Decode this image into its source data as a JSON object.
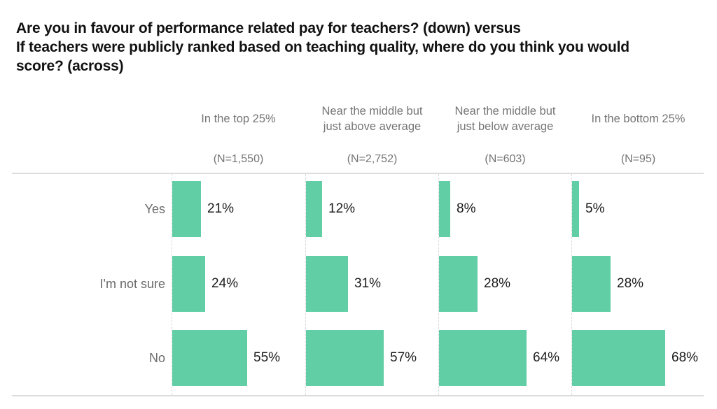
{
  "title": {
    "lines": [
      "Are you in favour of performance related pay for teachers? (down) versus",
      "If teachers were publicly ranked based on teaching quality, where do you think you would",
      "score? (across)"
    ]
  },
  "colors": {
    "bar": "#61cea6",
    "title_text": "#111111",
    "muted_text": "#757575",
    "row_label_text": "#6b6b6b",
    "value_text": "#1c1c1c",
    "grid_line": "#d9d9d9",
    "rule_line": "#dcdcdc"
  },
  "chart_data": {
    "type": "bar",
    "orientation": "horizontal",
    "title": "Are you in favour of performance related pay for teachers? (down) versus If teachers were publicly ranked based on teaching quality, where do you think you would score? (across)",
    "rows": [
      "Yes",
      "I'm not sure",
      "No"
    ],
    "columns": [
      {
        "header_lines": [
          "In the top 25%"
        ],
        "n_label": "(N=1,550)",
        "values": [
          21,
          24,
          55
        ]
      },
      {
        "header_lines": [
          "Near the middle but",
          "just above average"
        ],
        "n_label": "(N=2,752)",
        "values": [
          12,
          31,
          57
        ]
      },
      {
        "header_lines": [
          "Near the middle but",
          "just below average"
        ],
        "n_label": "(N=603)",
        "values": [
          8,
          28,
          64
        ]
      },
      {
        "header_lines": [
          "In the bottom 25%"
        ],
        "n_label": "(N=95)",
        "values": [
          5,
          28,
          68
        ]
      }
    ],
    "value_suffix": "%",
    "xlim": [
      0,
      100
    ],
    "legend": "none",
    "gridlines": "dashed vertical zero-line per column; light horizontal rules above and below plot"
  }
}
